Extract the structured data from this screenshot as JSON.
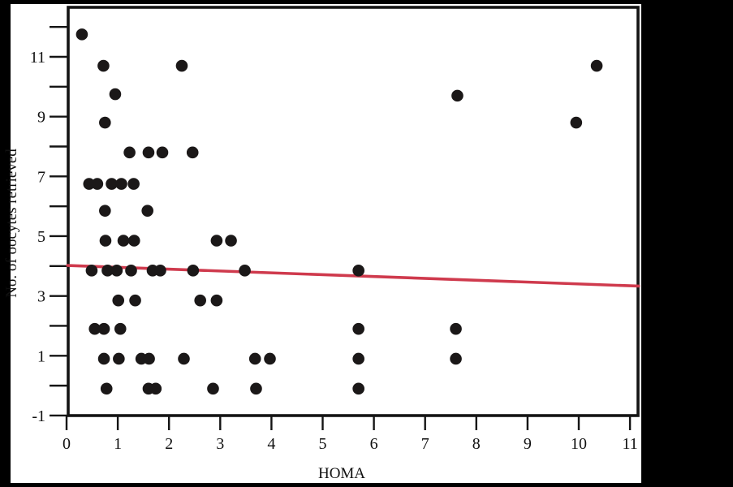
{
  "figure": {
    "border_color": "#000000",
    "panel_color": "#ffffff",
    "frame_color": "#141414"
  },
  "chart_data": {
    "type": "scatter",
    "title": "",
    "xlabel": "HOMA",
    "ylabel": "No. of oocytes retrieved",
    "xlim": [
      0,
      11.17
    ],
    "ylim": [
      -1,
      12.65
    ],
    "grid": false,
    "legend": null,
    "x_ticks": [
      0,
      1,
      2,
      3,
      4,
      5,
      6,
      7,
      8,
      9,
      10,
      11
    ],
    "y_labeled_ticks": [
      -1,
      1,
      3,
      5,
      7,
      9,
      11
    ],
    "y_unlabeled_ticks": [
      0,
      2,
      4,
      6,
      8,
      10,
      12
    ],
    "point_color": "#1b1818",
    "trend_line": {
      "x_start": 0.02,
      "y_start": 4.02,
      "x_end": 11.17,
      "y_end": 3.33,
      "color": "#cf3a4d"
    },
    "points": [
      [
        0.3,
        11.75
      ],
      [
        0.72,
        10.7
      ],
      [
        2.25,
        10.7
      ],
      [
        10.35,
        10.7
      ],
      [
        0.95,
        9.75
      ],
      [
        7.63,
        9.7
      ],
      [
        0.75,
        8.8
      ],
      [
        9.95,
        8.8
      ],
      [
        1.23,
        7.8
      ],
      [
        1.6,
        7.8
      ],
      [
        1.87,
        7.8
      ],
      [
        2.46,
        7.8
      ],
      [
        0.44,
        6.75
      ],
      [
        0.6,
        6.75
      ],
      [
        0.88,
        6.75
      ],
      [
        1.07,
        6.75
      ],
      [
        1.31,
        6.75
      ],
      [
        0.75,
        5.85
      ],
      [
        1.58,
        5.85
      ],
      [
        0.76,
        4.85
      ],
      [
        1.11,
        4.85
      ],
      [
        1.32,
        4.85
      ],
      [
        2.93,
        4.85
      ],
      [
        3.21,
        4.85
      ],
      [
        0.49,
        3.85
      ],
      [
        0.8,
        3.85
      ],
      [
        0.98,
        3.85
      ],
      [
        1.26,
        3.85
      ],
      [
        1.68,
        3.85
      ],
      [
        1.83,
        3.85
      ],
      [
        2.47,
        3.85
      ],
      [
        3.48,
        3.85
      ],
      [
        5.7,
        3.85
      ],
      [
        1.01,
        2.85
      ],
      [
        1.34,
        2.85
      ],
      [
        2.61,
        2.85
      ],
      [
        2.93,
        2.85
      ],
      [
        0.55,
        1.9
      ],
      [
        0.73,
        1.9
      ],
      [
        1.05,
        1.9
      ],
      [
        5.7,
        1.9
      ],
      [
        7.6,
        1.9
      ],
      [
        0.73,
        0.9
      ],
      [
        1.02,
        0.9
      ],
      [
        1.46,
        0.9
      ],
      [
        1.61,
        0.9
      ],
      [
        2.29,
        0.9
      ],
      [
        3.68,
        0.9
      ],
      [
        3.97,
        0.9
      ],
      [
        5.7,
        0.9
      ],
      [
        7.6,
        0.9
      ],
      [
        0.78,
        -0.1
      ],
      [
        1.6,
        -0.1
      ],
      [
        1.74,
        -0.1
      ],
      [
        2.86,
        -0.1
      ],
      [
        3.7,
        -0.1
      ],
      [
        5.7,
        -0.1
      ]
    ]
  }
}
